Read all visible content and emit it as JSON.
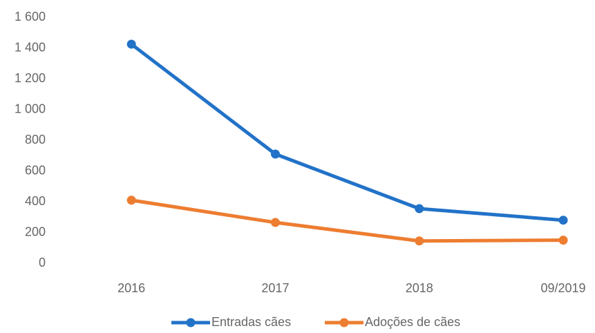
{
  "chart_data": {
    "type": "line",
    "categories": [
      "2016",
      "2017",
      "2018",
      "09/2019"
    ],
    "series": [
      {
        "name": "Entradas cães",
        "color": "#2272c8",
        "values": [
          1425,
          710,
          355,
          280
        ]
      },
      {
        "name": "Adoções de cães",
        "color": "#ed7d31",
        "values": [
          410,
          265,
          145,
          150
        ]
      }
    ],
    "ylim": [
      0,
      1600
    ],
    "yticks": [
      0,
      200,
      400,
      600,
      800,
      {
        "value": 1000,
        "label": "1 000"
      },
      {
        "value": 1200,
        "label": "1 200"
      },
      {
        "value": 1400,
        "label": "1 400"
      },
      {
        "value": 1600,
        "label": "1 600"
      }
    ],
    "grid": false,
    "legend": "bottom"
  }
}
